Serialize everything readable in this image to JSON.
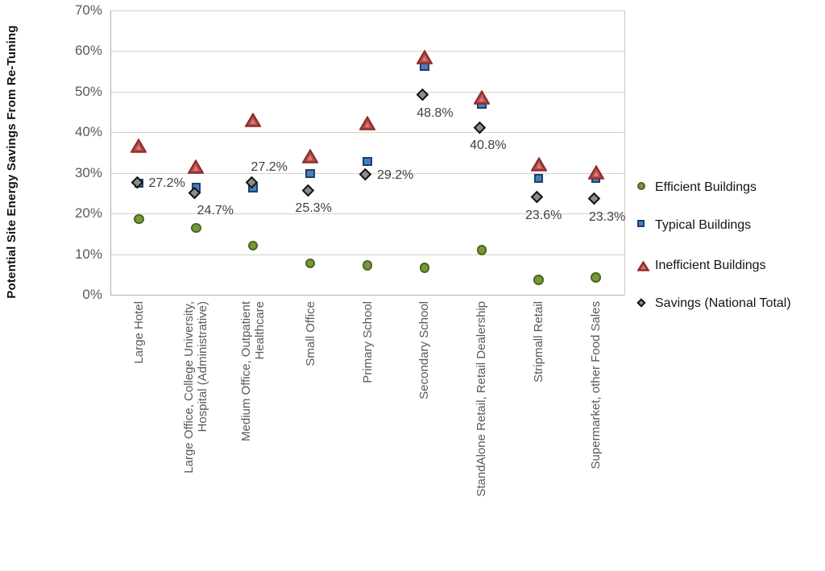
{
  "chart_data": {
    "type": "scatter",
    "title": "",
    "ylabel": "Potential Site Energy Savings From Re-Tuning",
    "xlabel": "",
    "ylim": [
      0,
      70
    ],
    "y_tick_step": 10,
    "y_ticks": [
      "0%",
      "10%",
      "20%",
      "30%",
      "40%",
      "50%",
      "60%",
      "70%"
    ],
    "grid": true,
    "legend_position": "right",
    "categories": [
      "Large Hotel",
      "Large Office, College University, Hospital (Administrative)",
      "Medium Office, Outpatient Healthcare",
      "Small Office",
      "Primary School",
      "Secondary School",
      "StandAlone Retail, Retail Dealership",
      "Stripmall Retail",
      "Supermarket, other Food Sales"
    ],
    "category_lines": [
      [
        "Large Hotel"
      ],
      [
        "Large Office, College University,",
        "Hospital (Administrative)"
      ],
      [
        "Medium Office, Outpatient",
        "Healthcare"
      ],
      [
        "Small Office"
      ],
      [
        "Primary School"
      ],
      [
        "Secondary School"
      ],
      [
        "StandAlone Retail, Retail Dealership"
      ],
      [
        "Stripmall Retail"
      ],
      [
        "Supermarket, other Food Sales"
      ]
    ],
    "series": [
      {
        "name": "Efficient Buildings",
        "marker": "circle",
        "fill": "#76973b",
        "stroke": "#4e651f",
        "values": [
          18.6,
          16.5,
          12.1,
          7.7,
          7.2,
          6.6,
          11.0,
          3.7,
          4.3
        ]
      },
      {
        "name": "Typical Buildings",
        "marker": "square",
        "fill": "#4a7ebb",
        "stroke": "#1e3f6f",
        "values": [
          27.5,
          26.4,
          26.4,
          29.8,
          32.8,
          56.3,
          47.0,
          28.7,
          28.7
        ]
      },
      {
        "name": "Inefficient Buildings",
        "marker": "triangle",
        "fill": "#bc4b47",
        "stroke": "#8a2e2a",
        "values": [
          36.4,
          31.3,
          42.9,
          33.9,
          42.0,
          58.3,
          48.3,
          31.9,
          29.9
        ]
      },
      {
        "name": "Savings (National Total)",
        "marker": "diamond",
        "fill": "#8c8c8c",
        "stroke": "#141414",
        "values": [
          27.2,
          24.7,
          27.2,
          25.3,
          29.2,
          48.8,
          40.8,
          23.6,
          23.3
        ]
      }
    ],
    "data_labels": {
      "series_name": "Savings (National Total)",
      "labels": [
        "27.2%",
        "24.7%",
        "27.2%",
        "25.3%",
        "29.2%",
        "48.8%",
        "40.8%",
        "23.6%",
        "23.3%"
      ],
      "placements": [
        "right",
        "below",
        "above",
        "below",
        "right",
        "below",
        "below",
        "below",
        "below"
      ],
      "dx": [
        0,
        24,
        20,
        4,
        0,
        13,
        8,
        6,
        14
      ]
    },
    "colors": {
      "gridline": "#d2d2d2",
      "axis": "#aeaeae",
      "tick_text": "#595959",
      "data_label_text": "#3f3f3f"
    }
  }
}
